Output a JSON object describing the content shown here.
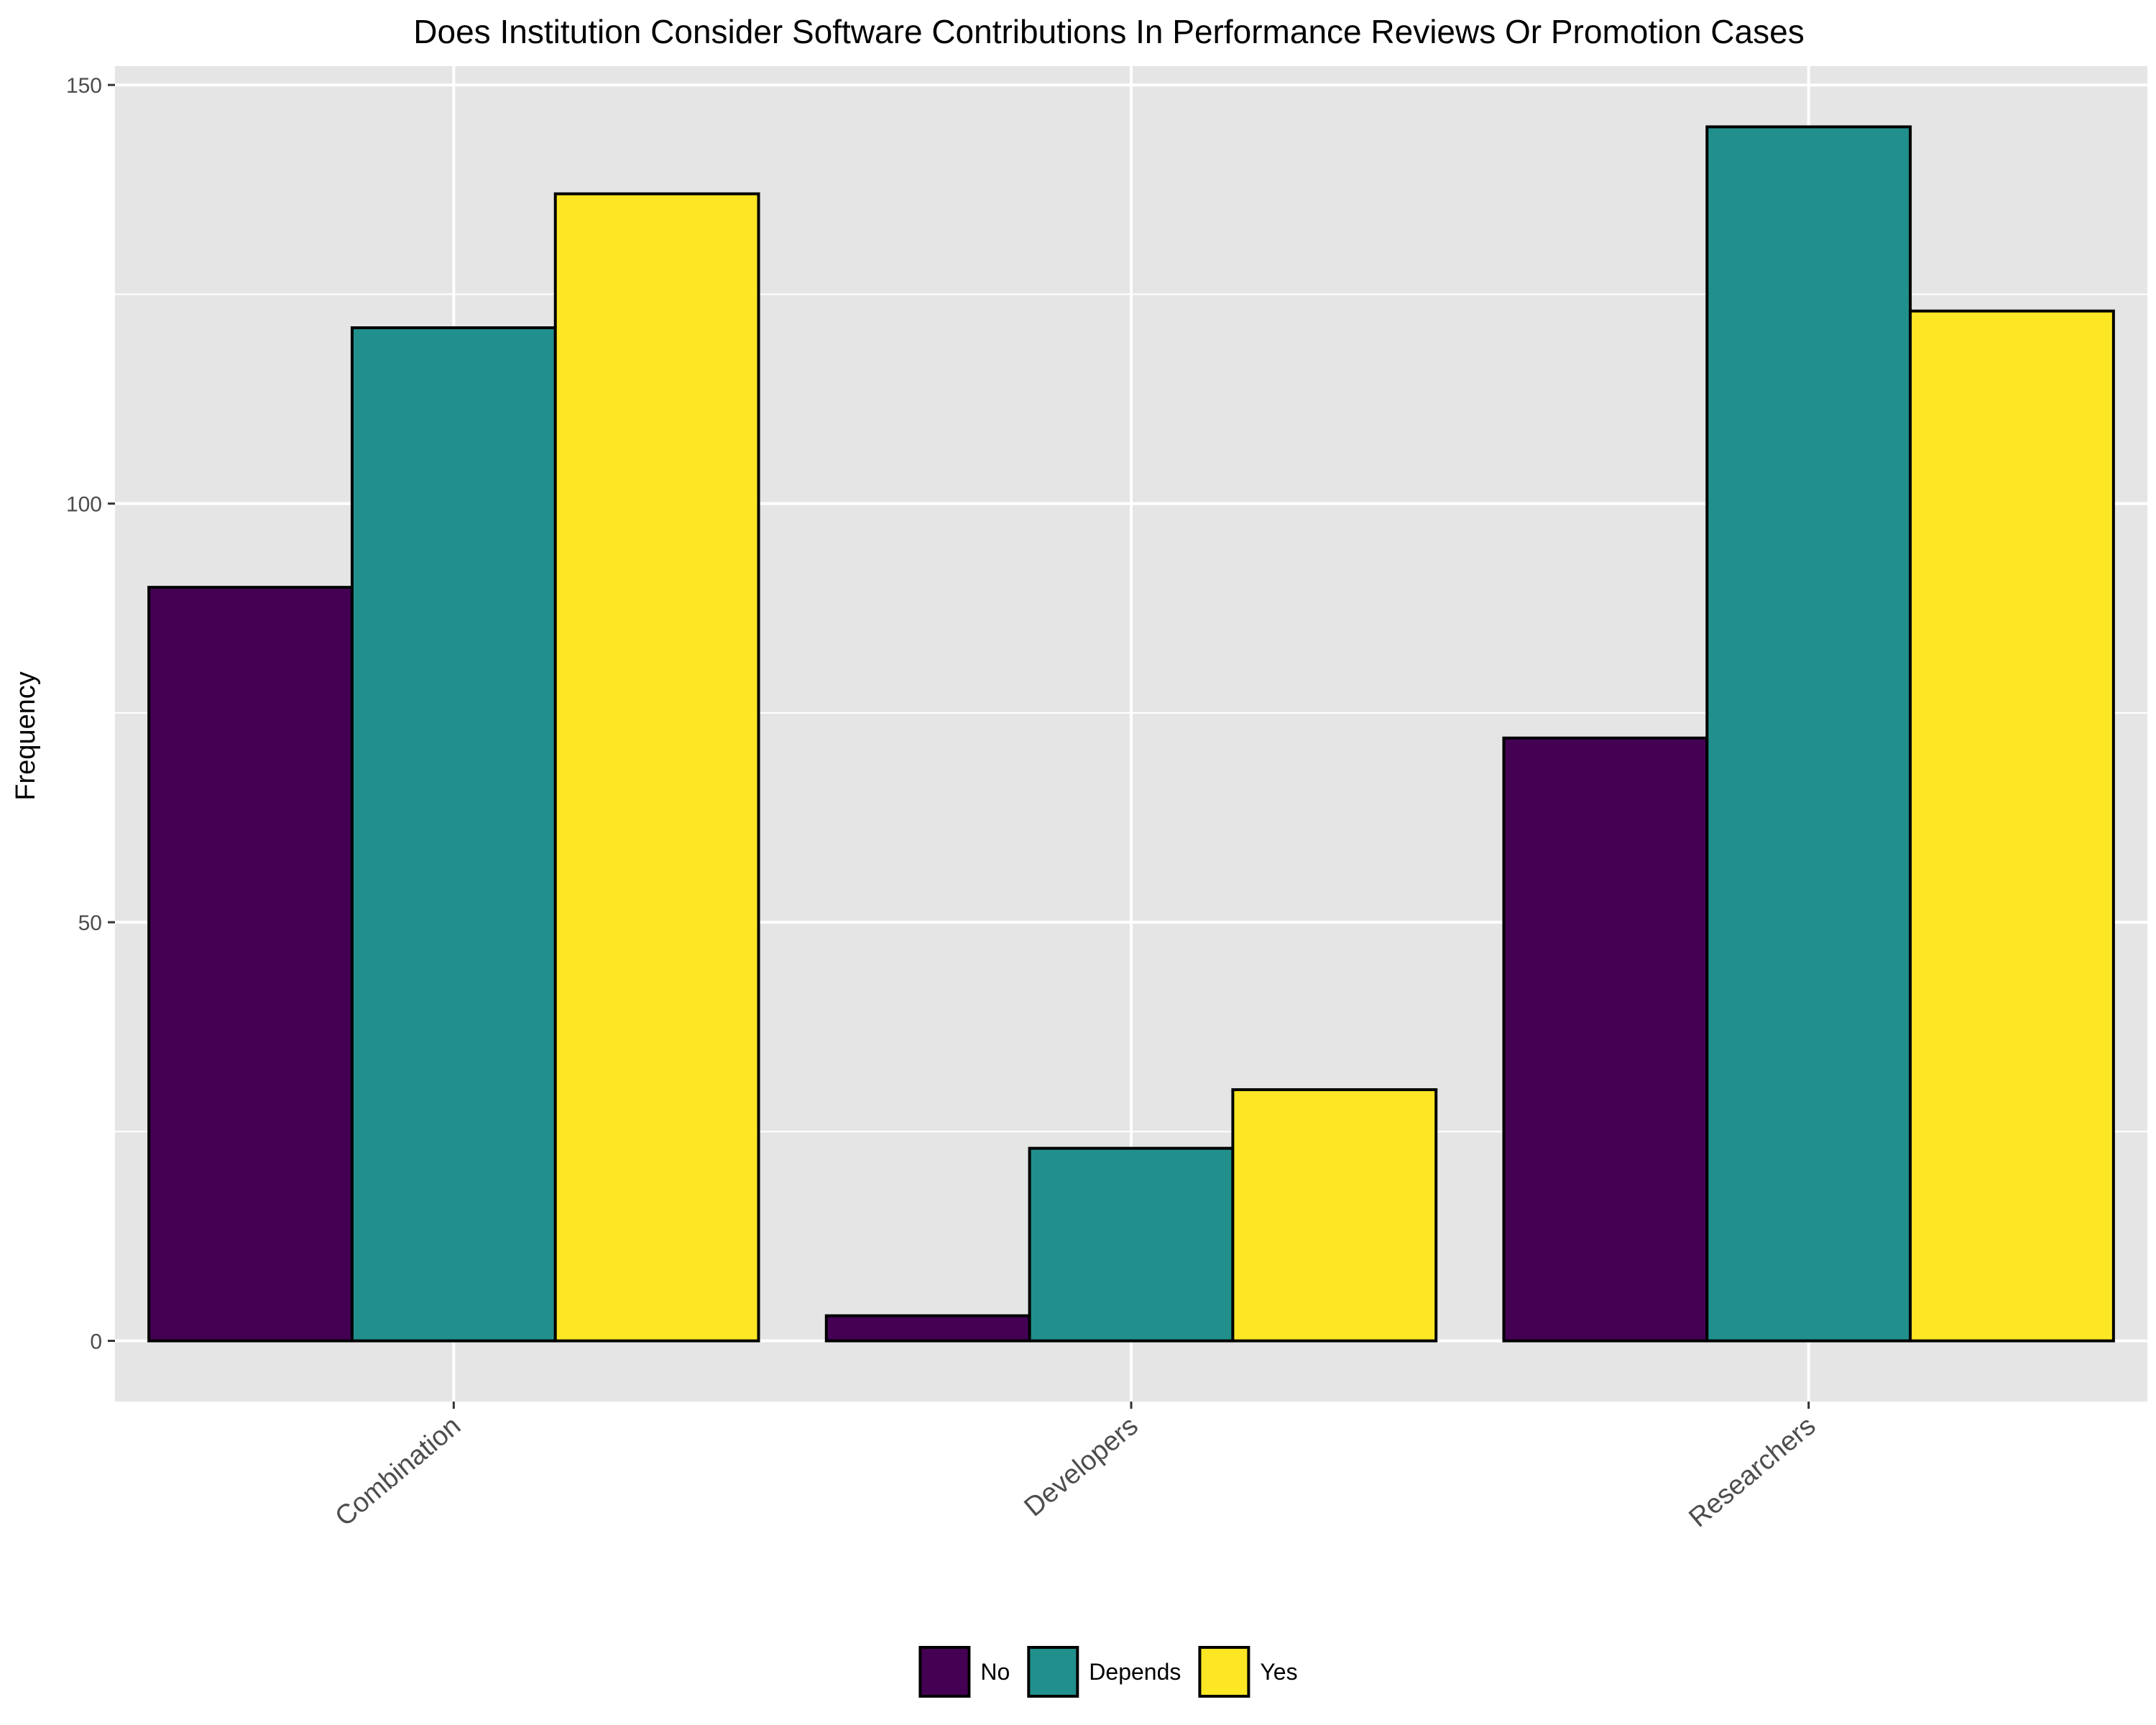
{
  "chart_data": {
    "type": "bar",
    "title": "Does Institution Consider Software Contributions In Performance Reviews Or Promotion Cases",
    "xlabel": "",
    "ylabel": "Frequency",
    "categories": [
      "Combination",
      "Developers",
      "Researchers"
    ],
    "series": [
      {
        "name": "No",
        "color": "#440154",
        "values": [
          90,
          3,
          72
        ]
      },
      {
        "name": "Depends",
        "color": "#21908C",
        "values": [
          121,
          23,
          145
        ]
      },
      {
        "name": "Yes",
        "color": "#FDE725",
        "values": [
          137,
          30,
          123
        ]
      }
    ],
    "ylim": [
      -7.25,
      152.25
    ],
    "yticks": [
      0,
      50,
      100,
      150
    ],
    "grid": true,
    "legend_position": "bottom",
    "panel_color": "#E5E5E5",
    "grid_color": "#FFFFFF",
    "bar_outline_color": "#000000"
  }
}
